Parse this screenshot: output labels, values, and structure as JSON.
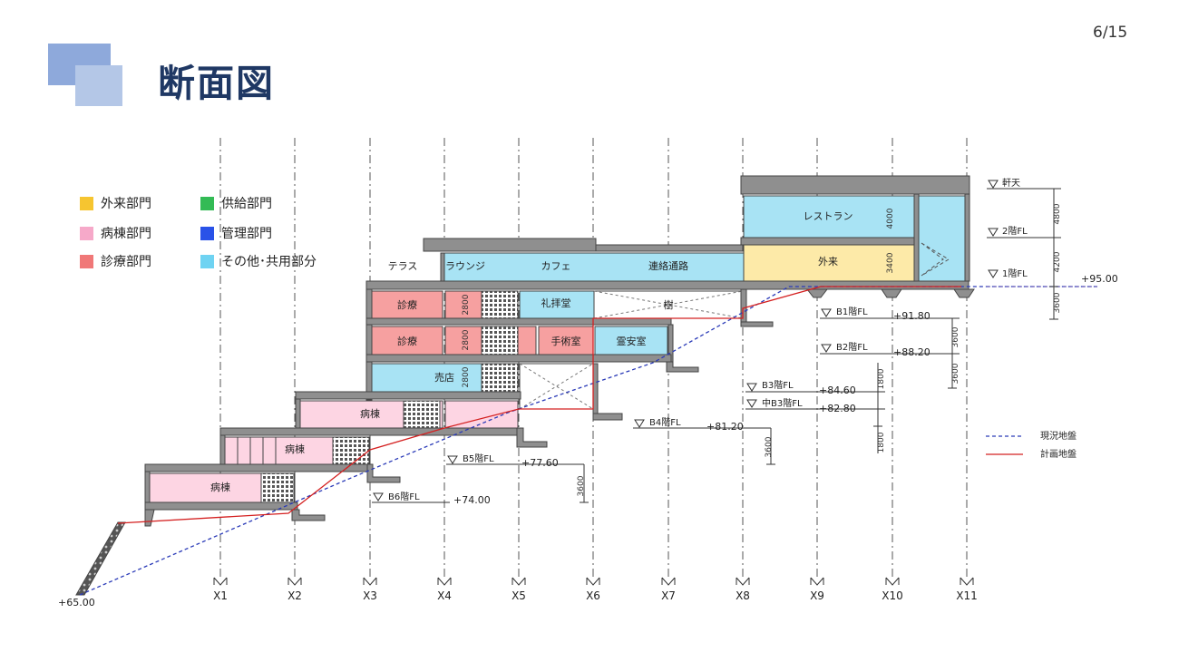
{
  "page": {
    "number": "6/15",
    "title": "断面図"
  },
  "legend": [
    {
      "label": "外来部門",
      "color": "#f6c530"
    },
    {
      "label": "供給部門",
      "color": "#33bb55"
    },
    {
      "label": "病棟部門",
      "color": "#f6a9c9"
    },
    {
      "label": "管理部門",
      "color": "#2952e8"
    },
    {
      "label": "診療部門",
      "color": "#f07878"
    },
    {
      "label": "その他･共用部分",
      "color": "#6fd3f2"
    }
  ],
  "colors": {
    "outpatient_fill": "#fdeaa8",
    "ward_fill": "#fdd5e3",
    "clinic_fill": "#f6a0a0",
    "common_fill": "#a8e3f4",
    "slab": "#8f8f8f",
    "existing_ground": "#2b3bb8",
    "planned_ground": "#d42020"
  },
  "gridlines": [
    "X1",
    "X2",
    "X3",
    "X4",
    "X5",
    "X6",
    "X7",
    "X8",
    "X9",
    "X10",
    "X11"
  ],
  "rooms": {
    "terrace": "テラス",
    "lounge": "ラウンジ",
    "cafe": "カフェ",
    "corridor": "連絡通路",
    "restaurant": "レストラン",
    "outpatient": "外来",
    "clinic_b1": "診療",
    "clinic_b2": "診療",
    "chapel": "礼拝堂",
    "surgery": "手術室",
    "morgue": "霊安室",
    "shop": "売店",
    "ward_b4": "病棟",
    "ward_b5": "病棟",
    "ward_b6": "病棟",
    "tree": "樹"
  },
  "dimensions": {
    "d4000": "4000",
    "d3400": "3400",
    "d2800a": "2800",
    "d2800b": "2800",
    "d2800c": "2800",
    "d4800": "4800",
    "d4200": "4200",
    "d3600a": "3600",
    "d3600b": "3600",
    "d3600c": "3600",
    "d1800a": "1800",
    "d1800b": "1800",
    "d3600d": "3600",
    "d3600e": "3600"
  },
  "levels": {
    "roof": "軒天",
    "f2": "2階FL",
    "f1": "1階FL",
    "f1_elev": "+95.00",
    "b1": "B1階FL",
    "b1_elev": "+91.80",
    "b2": "B2階FL",
    "b2_elev": "+88.20",
    "b3": "B3階FL",
    "b3_elev": "+84.60",
    "mb3": "中B3階FL",
    "mb3_elev": "+82.80",
    "b4": "B4階FL",
    "b4_elev": "+81.20",
    "b5": "B5階FL",
    "b5_elev": "+77.60",
    "b6": "B6階FL",
    "b6_elev": "+74.00",
    "base_elev": "+65.00"
  },
  "ground_legend": {
    "existing": "現況地盤",
    "planned": "計画地盤"
  }
}
